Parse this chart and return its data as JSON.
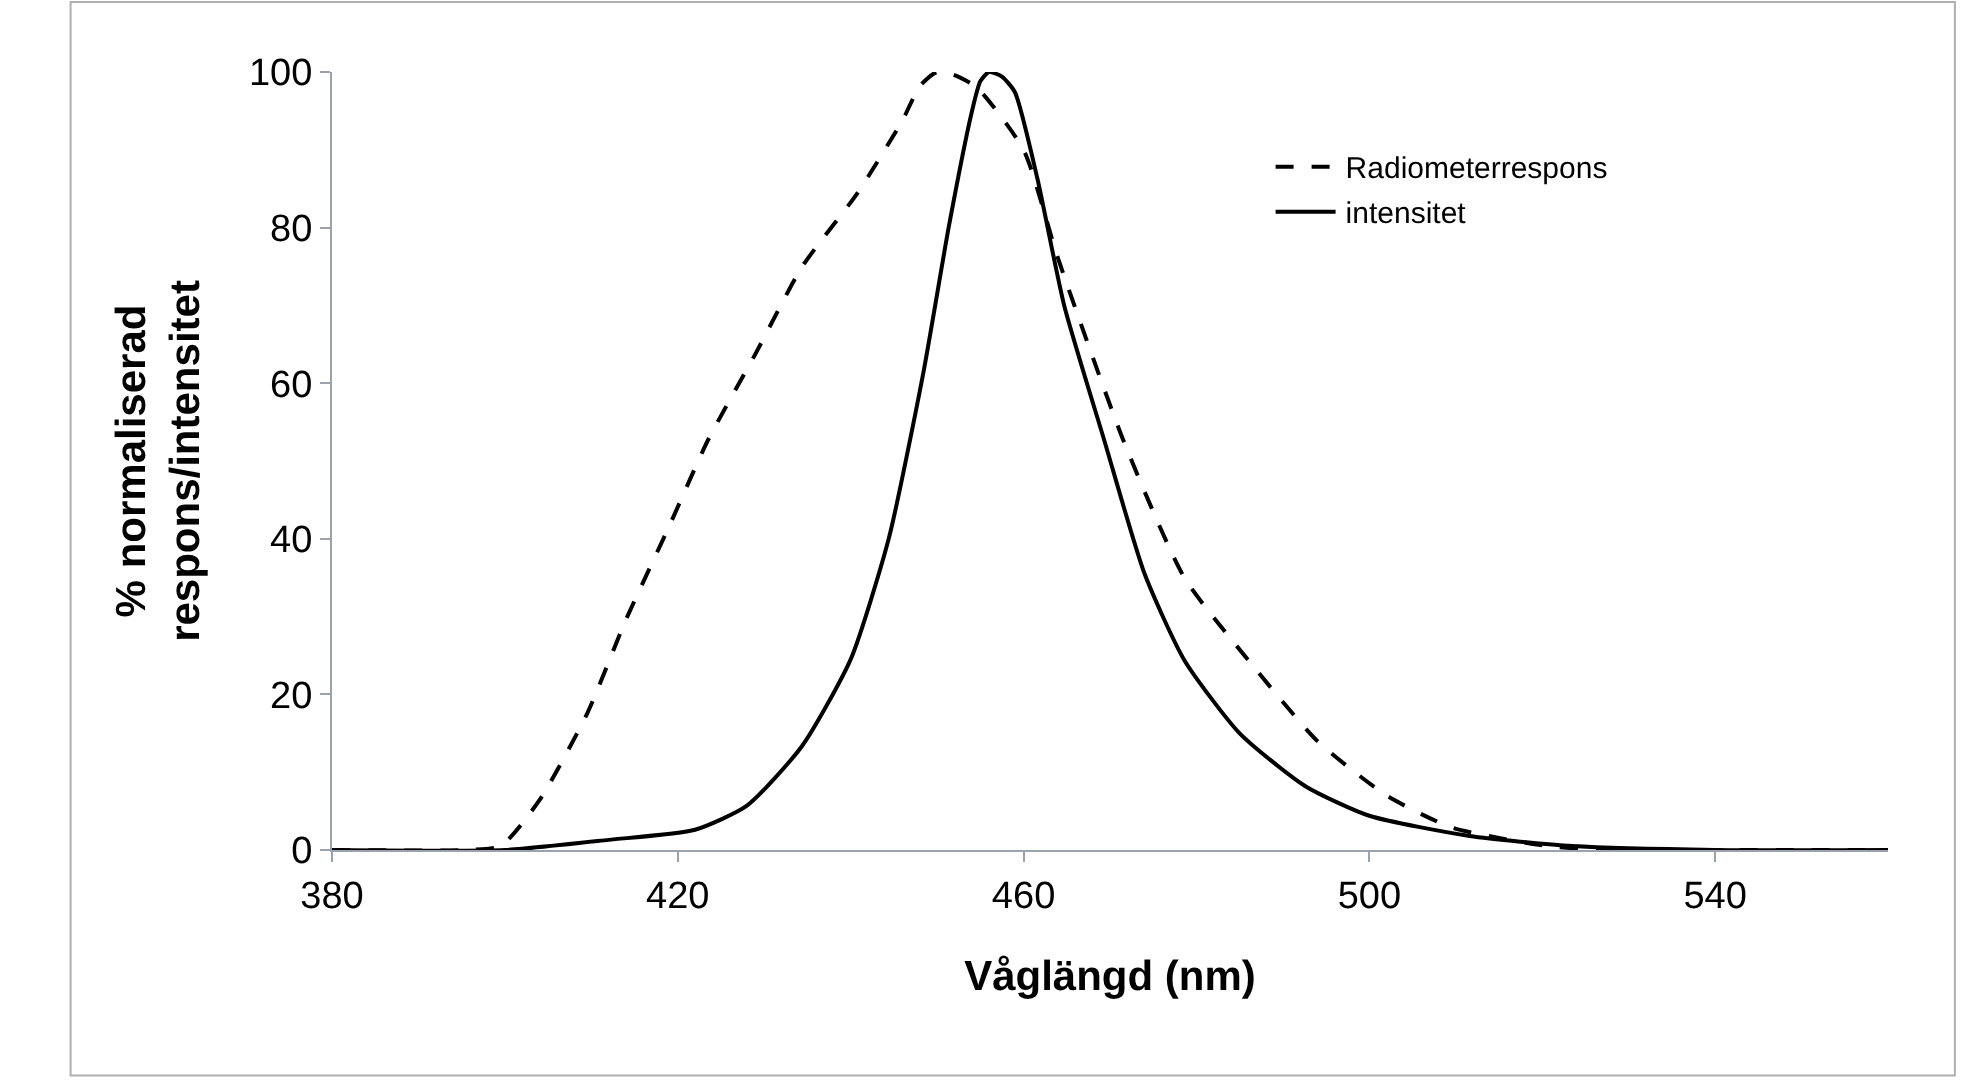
{
  "chart_data": {
    "type": "line",
    "xlabel": "Våglängd (nm)",
    "ylabel": "% normaliserad\nrespons/intensitet",
    "xlim": [
      380,
      560
    ],
    "xticks": [
      380,
      420,
      460,
      500,
      540
    ],
    "ylim": [
      0,
      100
    ],
    "yticks": [
      0,
      20,
      40,
      60,
      80,
      100
    ],
    "grid": false,
    "legend": "top right",
    "marker": "none",
    "series": [
      {
        "name": "Radiometerrespons",
        "color": "#000000",
        "line_style": "dashed",
        "x": [
          380,
          395,
          399.5,
          404,
          409.5,
          414,
          419,
          423.5,
          429,
          434.4,
          440.7,
          446,
          448,
          450,
          452,
          454.6,
          460,
          464,
          471.6,
          478.6,
          486,
          494,
          502,
          509.5,
          520,
          527,
          540,
          560
        ],
        "values": [
          0,
          0,
          0.5,
          6.4,
          17.5,
          29.6,
          41.6,
          52.7,
          63.8,
          75,
          84.3,
          93.8,
          98.2,
          100,
          99.6,
          98,
          90,
          76,
          52.5,
          35,
          24.4,
          14,
          7,
          2.9,
          0.6,
          0,
          0,
          0
        ]
      },
      {
        "name": "intensitet",
        "color": "#000000",
        "line_style": "solid",
        "x": [
          380,
          400,
          412,
          422,
          428,
          434.4,
          440,
          444.4,
          448.4,
          451.4,
          454,
          455,
          456,
          457.5,
          459,
          461.6,
          464.7,
          469.3,
          474,
          478.6,
          485,
          492.6,
          500,
          511.6,
          523.5,
          540,
          560
        ],
        "values": [
          0,
          0,
          1.3,
          2.6,
          5.7,
          13.4,
          24.5,
          40,
          61.3,
          80.4,
          94.8,
          98.8,
          100,
          99.4,
          97.4,
          86.3,
          70,
          52.8,
          35.5,
          24.4,
          15,
          8.2,
          4.4,
          1.8,
          0.5,
          0,
          0
        ]
      }
    ]
  }
}
